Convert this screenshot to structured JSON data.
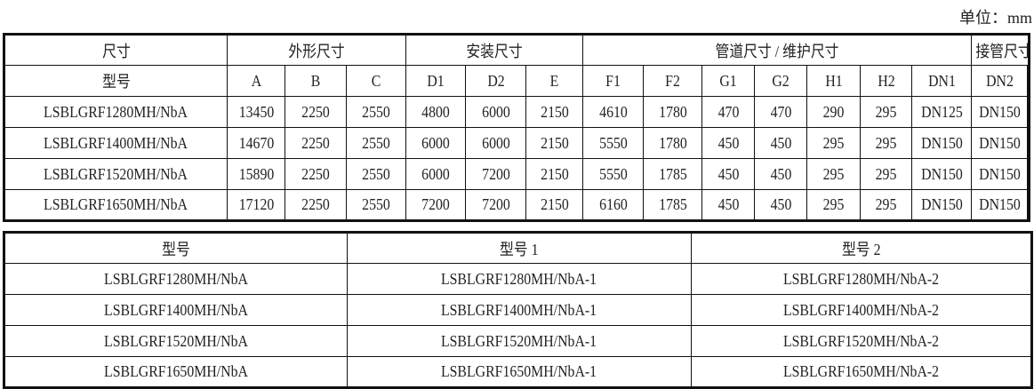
{
  "unit_label": "单位：mm",
  "dimensions_table": {
    "group_headers": [
      "尺寸",
      "外形尺寸",
      "安装尺寸",
      "管道尺寸 / 维护尺寸",
      "接管尺寸"
    ],
    "model_header": "型号",
    "columns": [
      "A",
      "B",
      "C",
      "D1",
      "D2",
      "E",
      "F1",
      "F2",
      "G1",
      "G2",
      "H1",
      "H2",
      "DN1",
      "DN2"
    ],
    "rows": [
      [
        "LSBLGRF1280MH/NbA",
        "13450",
        "2250",
        "2550",
        "4800",
        "6000",
        "2150",
        "4610",
        "1780",
        "470",
        "470",
        "290",
        "295",
        "DN125",
        "DN150"
      ],
      [
        "LSBLGRF1400MH/NbA",
        "14670",
        "2250",
        "2550",
        "6000",
        "6000",
        "2150",
        "5550",
        "1780",
        "450",
        "450",
        "295",
        "295",
        "DN150",
        "DN150"
      ],
      [
        "LSBLGRF1520MH/NbA",
        "15890",
        "2250",
        "2550",
        "6000",
        "7200",
        "2150",
        "5550",
        "1785",
        "450",
        "450",
        "295",
        "295",
        "DN150",
        "DN150"
      ],
      [
        "LSBLGRF1650MH/NbA",
        "17120",
        "2250",
        "2550",
        "7200",
        "7200",
        "2150",
        "6160",
        "1785",
        "450",
        "450",
        "295",
        "295",
        "DN150",
        "DN150"
      ]
    ]
  },
  "model_table": {
    "headers": [
      "型号",
      "型号 1",
      "型号 2"
    ],
    "rows": [
      [
        "LSBLGRF1280MH/NbA",
        "LSBLGRF1280MH/NbA-1",
        "LSBLGRF1280MH/NbA-2"
      ],
      [
        "LSBLGRF1400MH/NbA",
        "LSBLGRF1400MH/NbA-1",
        "LSBLGRF1400MH/NbA-2"
      ],
      [
        "LSBLGRF1520MH/NbA",
        "LSBLGRF1520MH/NbA-1",
        "LSBLGRF1520MH/NbA-2"
      ],
      [
        "LSBLGRF1650MH/NbA",
        "LSBLGRF1650MH/NbA-1",
        "LSBLGRF1650MH/NbA-2"
      ]
    ]
  }
}
